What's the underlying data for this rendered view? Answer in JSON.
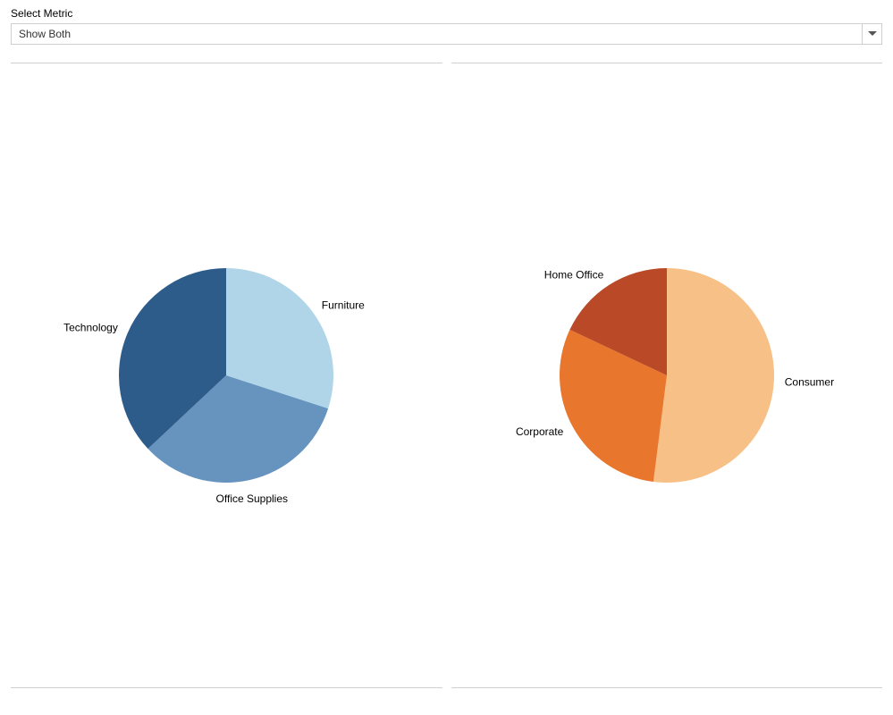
{
  "selector": {
    "label": "Select Metric",
    "value": "Show Both"
  },
  "layout": {
    "panel_border_color": "#cfcfcf",
    "background": "#ffffff"
  },
  "left_chart": {
    "type": "pie",
    "radius": 120,
    "label_fontsize": 12,
    "label_color": "#000000",
    "slices": [
      {
        "label": "Furniture",
        "value": 30,
        "color": "#b0d5e8"
      },
      {
        "label": "Office Supplies",
        "value": 33,
        "color": "#6694bf"
      },
      {
        "label": "Technology",
        "value": 37,
        "color": "#2e5c8a"
      }
    ],
    "start_angle_deg": 0
  },
  "right_chart": {
    "type": "pie",
    "radius": 120,
    "label_fontsize": 12,
    "label_color": "#000000",
    "slices": [
      {
        "label": "Consumer",
        "value": 52,
        "color": "#f6c087"
      },
      {
        "label": "Corporate",
        "value": 30,
        "color": "#e8762c"
      },
      {
        "label": "Home Office",
        "value": 18,
        "color": "#ba4a27"
      }
    ],
    "start_angle_deg": 0
  }
}
